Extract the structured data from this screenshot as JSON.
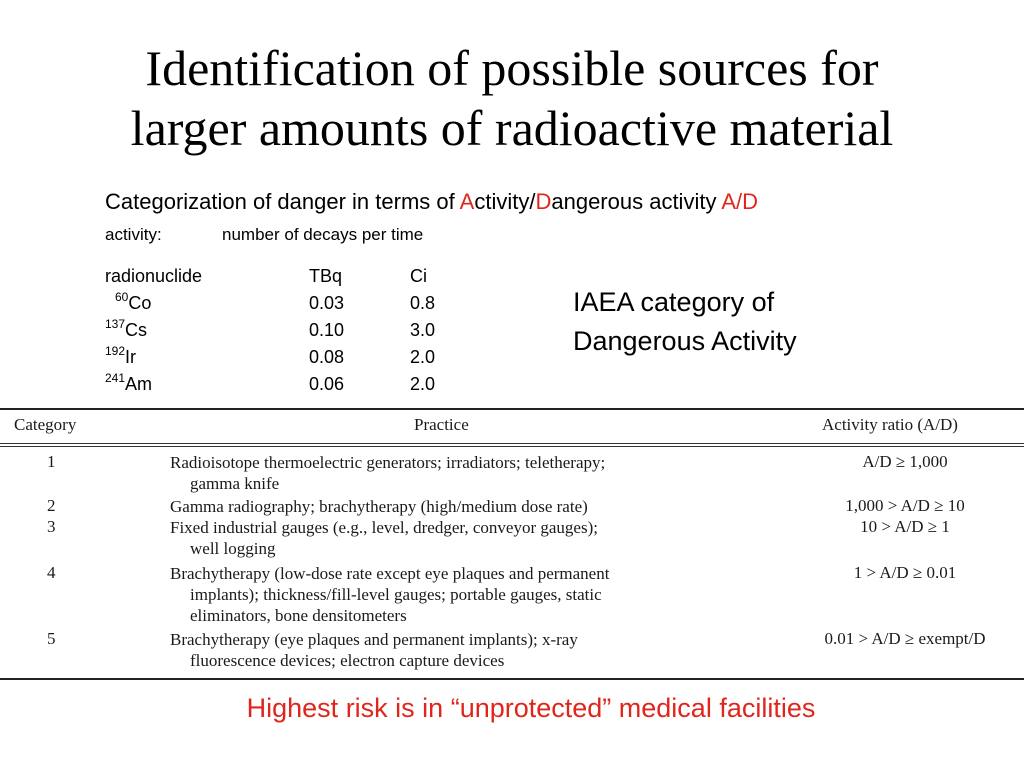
{
  "title": {
    "line1": "Identification of possible sources for",
    "line2": "larger amounts of radioactive material"
  },
  "subtitle": {
    "prefix": "Categorization of danger in terms of ",
    "a_letter": "A",
    "activity_rest": "ctivity/",
    "d_letter": "D",
    "dangerous_rest": "angerous activity ",
    "ad": "A/D"
  },
  "activity_definition": {
    "term": "activity:",
    "definition": "number of decays per time"
  },
  "nuclide_table": {
    "headers": [
      "radionuclide",
      "TBq",
      "Ci"
    ],
    "rows": [
      {
        "mass": "60",
        "element": "Co",
        "tbq": "0.03",
        "ci": "0.8"
      },
      {
        "mass": "137",
        "element": "Cs",
        "tbq": "0.10",
        "ci": "3.0"
      },
      {
        "mass": "192",
        "element": "Ir",
        "tbq": "0.08",
        "ci": "2.0"
      },
      {
        "mass": "241",
        "element": "Am",
        "tbq": "0.06",
        "ci": "2.0"
      }
    ]
  },
  "iaea_label": {
    "line1": "IAEA category of",
    "line2": "Dangerous Activity"
  },
  "practice_table": {
    "headers": {
      "category": "Category",
      "practice": "Practice",
      "ratio": "Activity ratio (A/D)"
    },
    "rows": [
      {
        "category": "1",
        "practice_lines": [
          "Radioisotope thermoelectric generators; irradiators; teletherapy;",
          "gamma knife"
        ],
        "ratio": "A/D ≥ 1,000"
      },
      {
        "category": "2",
        "practice_lines": [
          "Gamma radiography; brachytherapy (high/medium dose rate)"
        ],
        "ratio": "1,000 > A/D ≥ 10"
      },
      {
        "category": "3",
        "practice_lines": [
          "Fixed industrial gauges (e.g., level, dredger, conveyor gauges);",
          "well logging"
        ],
        "ratio": "10 > A/D ≥ 1"
      },
      {
        "category": "4",
        "practice_lines": [
          "Brachytherapy (low-dose rate except eye plaques and permanent",
          "implants); thickness/fill-level gauges; portable gauges, static",
          "eliminators, bone densitometers"
        ],
        "ratio": "1 > A/D ≥ 0.01"
      },
      {
        "category": "5",
        "practice_lines": [
          "Brachytherapy (eye plaques and permanent implants); x-ray",
          "fluorescence devices; electron capture devices"
        ],
        "ratio": "0.01 > A/D ≥ exempt/D"
      }
    ]
  },
  "footer": "Highest risk is in “unprotected” medical facilities",
  "colors": {
    "accent_red": "#e0261c",
    "text": "#000000"
  }
}
